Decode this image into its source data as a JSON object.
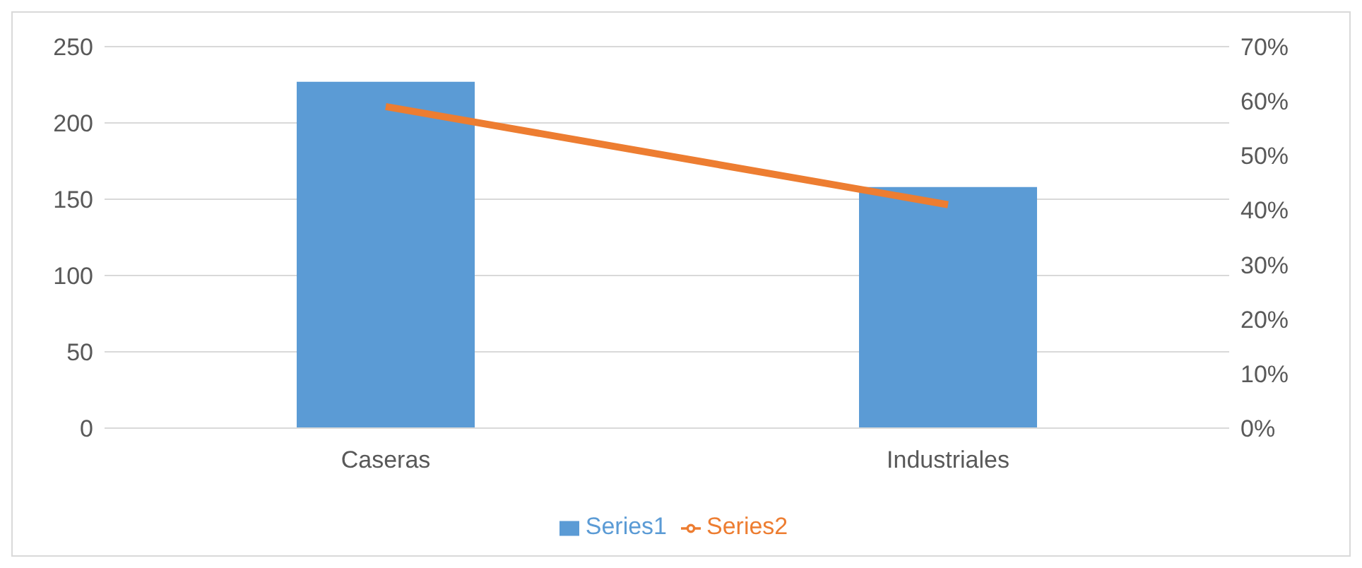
{
  "chart_data": {
    "type": "bar",
    "categories": [
      "Caseras",
      "Industriales"
    ],
    "series": [
      {
        "name": "Series1",
        "color": "#5b9bd5",
        "values": [
          227,
          158
        ]
      },
      {
        "name": "Series2",
        "type": "line",
        "axis": "y2",
        "color": "#ed7d31",
        "values": [
          59,
          41
        ]
      }
    ],
    "ylim": [
      0,
      250
    ],
    "yticks": [
      0,
      50,
      100,
      150,
      200,
      250
    ],
    "y2lim": [
      0,
      70
    ],
    "y2ticks": [
      {
        "value": 0,
        "label": "0%"
      },
      {
        "value": 10,
        "label": "10%"
      },
      {
        "value": 20,
        "label": "20%"
      },
      {
        "value": 30,
        "label": "30%"
      },
      {
        "value": 40,
        "label": "40%"
      },
      {
        "value": 50,
        "label": "50%"
      },
      {
        "value": 60,
        "label": "60%"
      },
      {
        "value": 70,
        "label": "70%"
      }
    ],
    "grid": "y",
    "legend": "bottom",
    "marker": "none"
  }
}
